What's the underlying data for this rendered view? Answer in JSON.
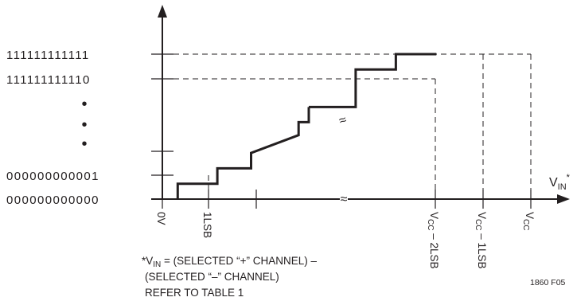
{
  "chart_data": {
    "type": "line",
    "y_codes": [
      {
        "code": "111111111111",
        "level": 1.0
      },
      {
        "code": "111111111110",
        "level": 0.894
      },
      {
        "code": "000000000001",
        "level": 0.106
      },
      {
        "code": "000000000000",
        "level": 0.0
      }
    ],
    "y_ellipsis": "•",
    "x_axis_label": "V",
    "x_axis_label_sub": "IN",
    "x_axis_label_sup": "*",
    "x_ticks": [
      {
        "label": "0V"
      },
      {
        "label": "1LSB"
      },
      {
        "label": "V",
        "sub": "CC",
        "suffix": " – 2LSB"
      },
      {
        "label": "V",
        "sub": "CC",
        "suffix": " – 1LSB"
      },
      {
        "label": "V",
        "sub": "CC",
        "suffix": ""
      }
    ],
    "series": [
      {
        "x": [
          0.09,
          0.09,
          0.323,
          0.323,
          0.521,
          0.521,
          0.8,
          0.8,
          0.86,
          0.86
        ],
        "y": [
          0.0,
          0.106,
          0.106,
          0.212,
          0.212,
          0.318,
          0.441,
          0.531,
          0.531,
          0.635
        ]
      },
      {
        "x": [
          0.86,
          1.135,
          1.135,
          1.371,
          1.371,
          1.609
        ],
        "y": [
          0.635,
          0.635,
          0.894,
          0.894,
          1.0,
          1.0
        ]
      }
    ],
    "axis_break_symbol": "≈",
    "footnote": [
      "*V",
      "IN",
      " = (SELECTED “+” CHANNEL) –",
      "(SELECTED “–” CHANNEL)",
      "REFER TO TABLE 1"
    ],
    "figure_id": "1860 F05"
  }
}
